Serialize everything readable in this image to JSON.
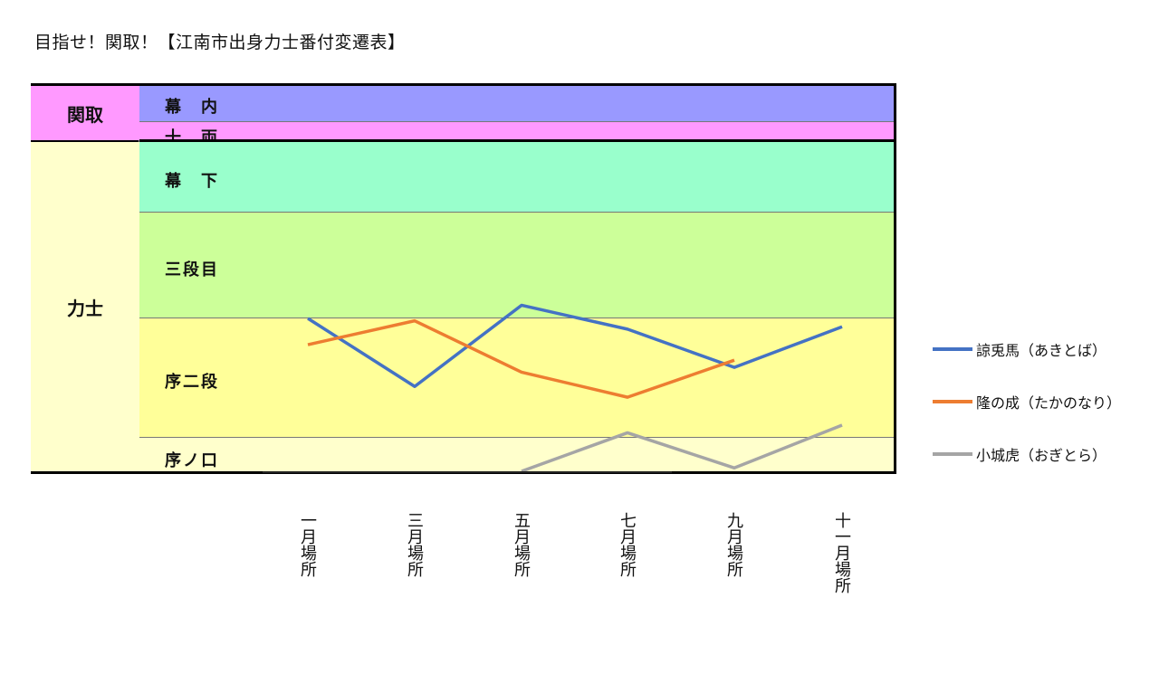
{
  "title": "目指せ！関取！【江南市出身力士番付変遷表】",
  "groups": [
    {
      "name": "関取",
      "color": "#ff99ff"
    },
    {
      "name": "力士",
      "color": "#ffffcc"
    }
  ],
  "bands": [
    {
      "name": "幕　内",
      "color": "#9999ff"
    },
    {
      "name": "十　両",
      "color": "#ff99ff"
    },
    {
      "name": "幕　下",
      "color": "#99ffcc"
    },
    {
      "name": "三段目",
      "color": "#ccff99"
    },
    {
      "name": "序二段",
      "color": "#ffff99"
    },
    {
      "name": "序ノ口",
      "color": "#ffffcc"
    }
  ],
  "chart_data": {
    "type": "line",
    "categories": [
      "一月場所",
      "三月場所",
      "五月場所",
      "七月場所",
      "九月場所",
      "十一月場所"
    ],
    "x_tick_labels": [
      "一月場所",
      "三月場所",
      "五月場所",
      "七月場所",
      "九月場所",
      "十一月場所"
    ],
    "y_scale": "rank bands from 幕内 (top) to 序ノ口 (bottom), no numeric ticks",
    "series": [
      {
        "name": "諒兎馬（あきとば）",
        "color": "#4472c4",
        "band_positions": [
          0.0,
          0.57,
          -0.11,
          0.09,
          0.41,
          0.07
        ]
      },
      {
        "name": "隆の成（たかのなり）",
        "color": "#ed7d31",
        "band_positions": [
          0.22,
          0.02,
          0.45,
          0.66,
          0.35,
          null
        ]
      },
      {
        "name": "小城虎（おぎとら）",
        "color": "#a5a5a5",
        "band_positions": [
          null,
          null,
          1.0,
          -0.15,
          0.9,
          -0.38
        ]
      }
    ],
    "series_band": [
      "序二段",
      "序二段",
      "序ノ口"
    ],
    "legend": "right",
    "grid": false
  }
}
